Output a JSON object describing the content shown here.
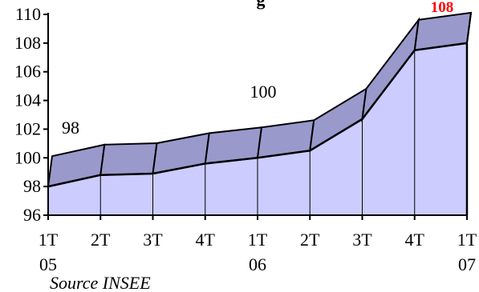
{
  "title_fragment": "g",
  "source": "Source INSEE",
  "colors": {
    "front_fill": "#ccccff",
    "top_fill": "#9999cc",
    "highlight": "#ff0000",
    "line": "#000000"
  },
  "chart_data": {
    "type": "area",
    "three_d": true,
    "x": [
      "1T 05",
      "2T 05",
      "3T 05",
      "4T 05",
      "1T 06",
      "2T 06",
      "3T 06",
      "4T 06",
      "1T 07"
    ],
    "x_tick_top": [
      "1T",
      "2T",
      "3T",
      "4T",
      "1T",
      "2T",
      "3T",
      "4T",
      "1T"
    ],
    "x_tick_bottom": [
      "05",
      "",
      "",
      "",
      "06",
      "",
      "",
      "",
      "07"
    ],
    "series": [
      {
        "values": [
          98.0,
          98.8,
          98.9,
          99.6,
          100.0,
          100.5,
          102.7,
          107.5,
          108.0
        ]
      }
    ],
    "ylim": [
      96,
      110
    ],
    "yticks": [
      96,
      98,
      100,
      102,
      104,
      106,
      108,
      110
    ],
    "grid": false,
    "annotations": [
      "98",
      "100",
      "108"
    ]
  }
}
